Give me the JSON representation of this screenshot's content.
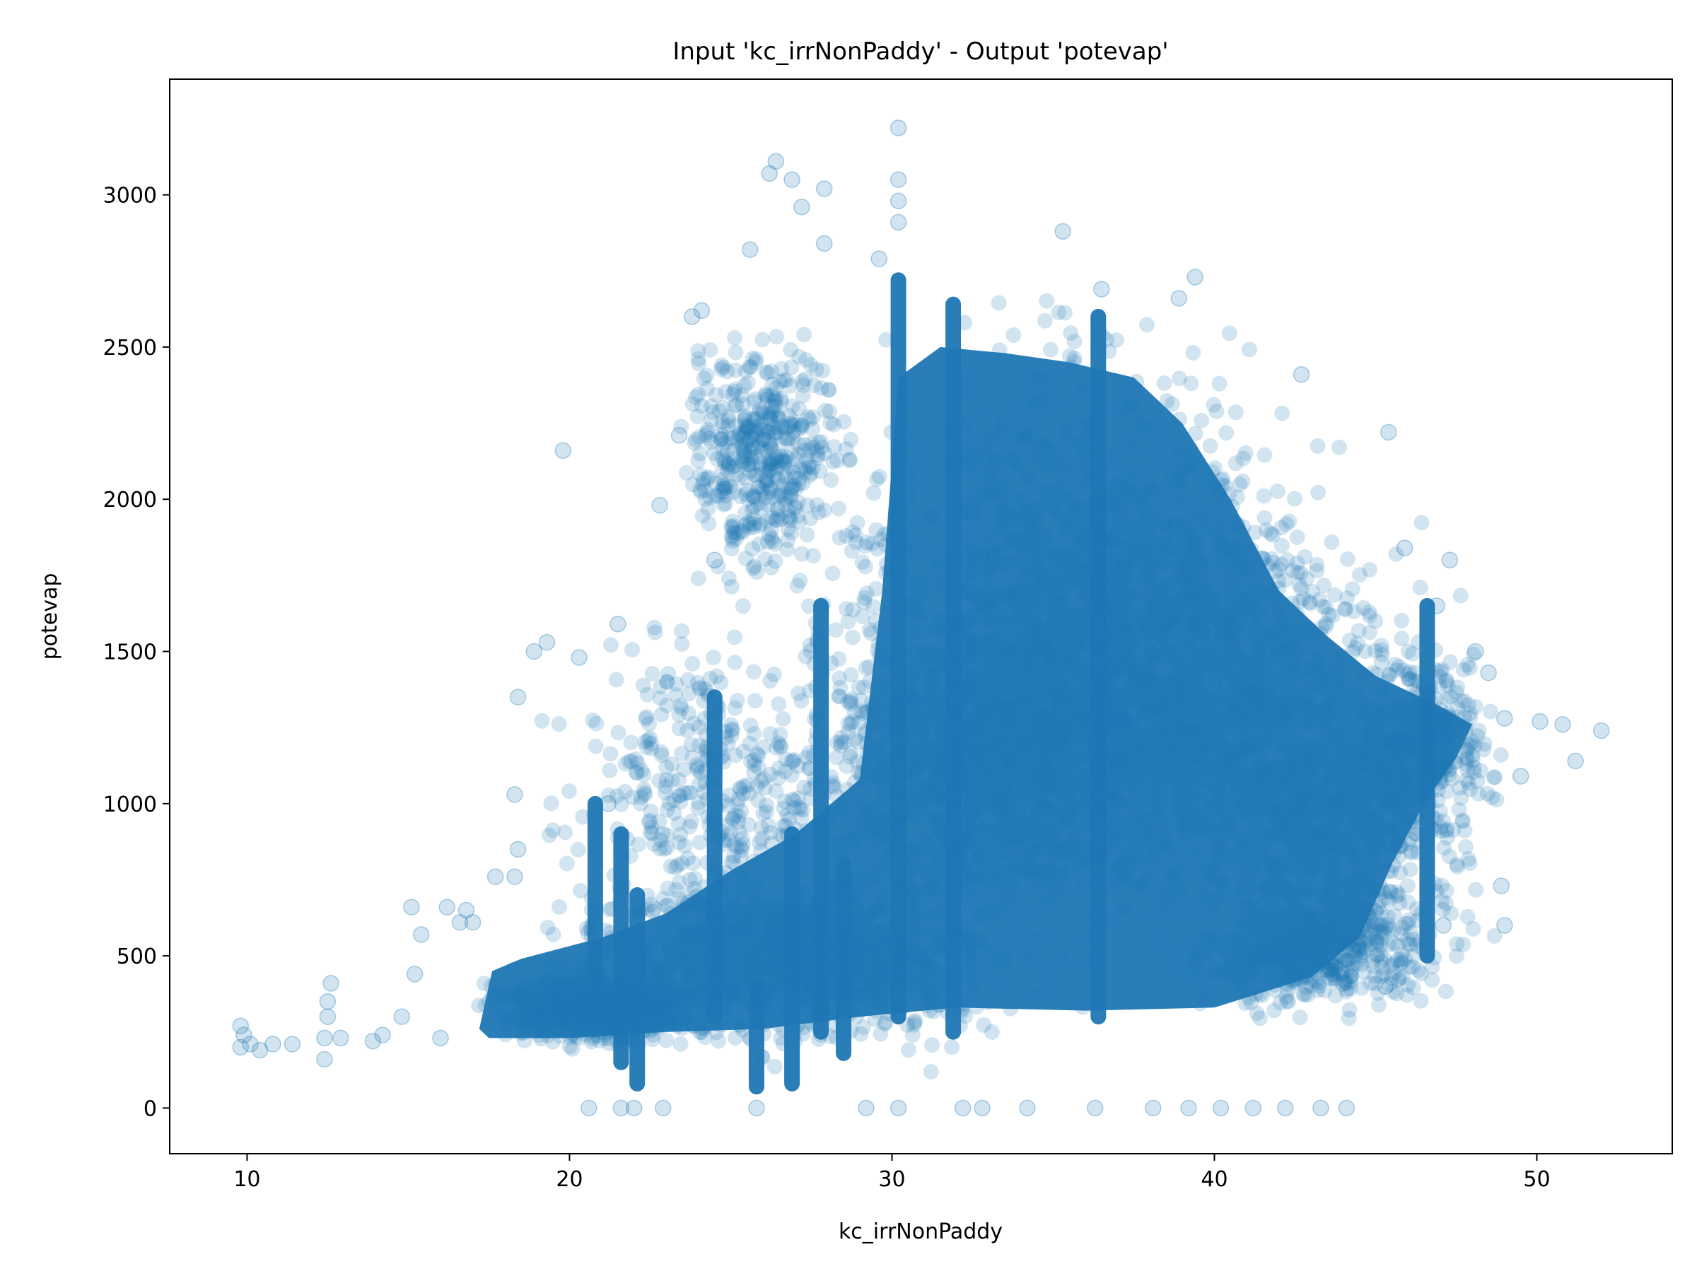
{
  "chart_data": {
    "type": "scatter",
    "title": "Input 'kc_irrNonPaddy' - Output 'potevap'",
    "xlabel": "kc_irrNonPaddy",
    "ylabel": "potevap",
    "xlim": [
      7.6,
      54.2
    ],
    "ylim": [
      -150,
      3380
    ],
    "xticks": [
      10,
      20,
      30,
      40,
      50
    ],
    "yticks": [
      0,
      500,
      1000,
      1500,
      2000,
      2500,
      3000
    ],
    "grid": false,
    "legend": false,
    "marker_color": "#1f77b4",
    "marker_alpha": 0.2,
    "series": [
      {
        "points": [
          [
            9.8,
            270
          ],
          [
            9.9,
            240
          ],
          [
            9.8,
            200
          ],
          [
            10.1,
            210
          ],
          [
            10.4,
            190
          ],
          [
            10.8,
            210
          ],
          [
            11.4,
            210
          ],
          [
            12.4,
            160
          ],
          [
            12.4,
            230
          ],
          [
            12.5,
            300
          ],
          [
            12.6,
            410
          ],
          [
            12.5,
            350
          ],
          [
            12.9,
            230
          ],
          [
            13.9,
            220
          ],
          [
            14.2,
            240
          ],
          [
            14.8,
            300
          ],
          [
            15.1,
            660
          ],
          [
            15.2,
            440
          ],
          [
            15.4,
            570
          ],
          [
            16.0,
            230
          ],
          [
            16.2,
            660
          ],
          [
            16.6,
            610
          ],
          [
            16.8,
            650
          ],
          [
            17.0,
            610
          ],
          [
            19.8,
            2160
          ],
          [
            22.8,
            1980
          ],
          [
            23.4,
            2210
          ],
          [
            23.8,
            2600
          ],
          [
            24.1,
            2620
          ],
          [
            24.5,
            1800
          ],
          [
            25.6,
            2820
          ],
          [
            26.2,
            3070
          ],
          [
            26.4,
            3110
          ],
          [
            26.9,
            3050
          ],
          [
            27.2,
            2960
          ],
          [
            27.9,
            3020
          ],
          [
            27.9,
            2840
          ],
          [
            30.2,
            3220
          ],
          [
            30.2,
            3050
          ],
          [
            30.2,
            2980
          ],
          [
            30.2,
            2910
          ],
          [
            29.6,
            2790
          ],
          [
            35.3,
            2880
          ],
          [
            36.5,
            2690
          ],
          [
            38.9,
            2660
          ],
          [
            39.4,
            2730
          ],
          [
            42.7,
            2410
          ],
          [
            45.4,
            2220
          ],
          [
            47.3,
            1800
          ],
          [
            46.9,
            1650
          ],
          [
            45.9,
            1840
          ],
          [
            48.1,
            1500
          ],
          [
            48.5,
            1430
          ],
          [
            49.0,
            1280
          ],
          [
            50.1,
            1270
          ],
          [
            50.8,
            1260
          ],
          [
            52.0,
            1240
          ],
          [
            51.2,
            1140
          ],
          [
            49.5,
            1090
          ],
          [
            48.9,
            730
          ],
          [
            49.0,
            600
          ],
          [
            47.1,
            600
          ],
          [
            45.3,
            400
          ],
          [
            44.0,
            410
          ],
          [
            20.6,
            0
          ],
          [
            21.6,
            0
          ],
          [
            22.0,
            0
          ],
          [
            22.9,
            0
          ],
          [
            25.8,
            0
          ],
          [
            29.2,
            0
          ],
          [
            30.2,
            0
          ],
          [
            32.2,
            0
          ],
          [
            32.8,
            0
          ],
          [
            34.2,
            0
          ],
          [
            36.3,
            0
          ],
          [
            38.1,
            0
          ],
          [
            39.2,
            0
          ],
          [
            40.2,
            0
          ],
          [
            41.2,
            0
          ],
          [
            42.2,
            0
          ],
          [
            43.3,
            0
          ],
          [
            44.1,
            0
          ],
          [
            18.4,
            1350
          ],
          [
            18.9,
            1500
          ],
          [
            19.3,
            1530
          ],
          [
            20.3,
            1480
          ],
          [
            21.5,
            1590
          ],
          [
            21.2,
            1000
          ],
          [
            18.3,
            1030
          ],
          [
            18.4,
            850
          ],
          [
            18.3,
            760
          ],
          [
            17.7,
            760
          ]
        ]
      }
    ],
    "vertical_streaks": [
      {
        "x": 20.8,
        "ymin": 300,
        "ymax": 1000
      },
      {
        "x": 21.6,
        "ymin": 150,
        "ymax": 900
      },
      {
        "x": 22.1,
        "ymin": 80,
        "ymax": 700
      },
      {
        "x": 24.5,
        "ymin": 300,
        "ymax": 1350
      },
      {
        "x": 25.8,
        "ymin": 70,
        "ymax": 400
      },
      {
        "x": 26.9,
        "ymin": 80,
        "ymax": 900
      },
      {
        "x": 27.8,
        "ymin": 250,
        "ymax": 1650
      },
      {
        "x": 28.5,
        "ymin": 180,
        "ymax": 800
      },
      {
        "x": 30.2,
        "ymin": 300,
        "ymax": 2720
      },
      {
        "x": 31.9,
        "ymin": 250,
        "ymax": 2640
      },
      {
        "x": 36.4,
        "ymin": 300,
        "ymax": 2600
      },
      {
        "x": 46.6,
        "ymin": 500,
        "ymax": 1650
      }
    ]
  }
}
